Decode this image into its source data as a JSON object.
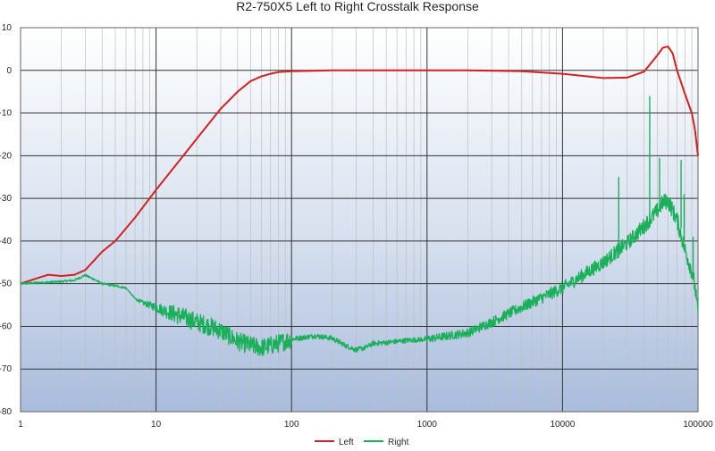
{
  "chart_data": {
    "type": "line",
    "title": "R2-750X5 Left to Right Crosstalk Response",
    "xlabel": "",
    "ylabel": "",
    "xscale": "log",
    "xlim": [
      1,
      100000
    ],
    "ylim": [
      -80,
      10
    ],
    "x_tick_labels": [
      "1",
      "10",
      "100",
      "1000",
      "10000",
      "100000"
    ],
    "y_tick_labels": [
      "10",
      "0",
      "-10",
      "-20",
      "-30",
      "-40",
      "-50",
      "-60",
      "-70",
      "-80"
    ],
    "grid": true,
    "background": "vertical gradient, white at top to light blue at bottom",
    "legend_position": "bottom-center",
    "series": [
      {
        "name": "Left",
        "color": "#d42020",
        "x": [
          1,
          1.3,
          1.6,
          2,
          2.5,
          3,
          3.5,
          4,
          5,
          7,
          10,
          15,
          20,
          30,
          40,
          50,
          60,
          70,
          80,
          100,
          150,
          200,
          500,
          1000,
          2000,
          5000,
          10000,
          20000,
          30000,
          40000,
          50000,
          55000,
          60000,
          65000,
          70000,
          80000,
          90000,
          95000,
          100000
        ],
        "y": [
          -50,
          -48.8,
          -47.9,
          -48.2,
          -47.9,
          -46.8,
          -44.5,
          -42.5,
          -40,
          -34.5,
          -28,
          -21,
          -16,
          -9,
          -5,
          -2.5,
          -1.4,
          -0.8,
          -0.4,
          -0.2,
          -0.1,
          0,
          0,
          0,
          0,
          -0.2,
          -0.8,
          -1.8,
          -1.7,
          -0.3,
          3.5,
          5.3,
          5.6,
          4,
          0,
          -5.5,
          -10,
          -14,
          -20
        ]
      },
      {
        "name": "Right",
        "color": "#1ab05a",
        "x": [
          1,
          1.5,
          2,
          2.5,
          3,
          3.5,
          4,
          5,
          6,
          7,
          8,
          10,
          12,
          15,
          20,
          25,
          30,
          40,
          50,
          60,
          70,
          80,
          100,
          150,
          200,
          250,
          300,
          350,
          400,
          500,
          700,
          1000,
          2000,
          3000,
          5000,
          10000,
          20000,
          30000,
          40000,
          50000,
          55000,
          60000,
          70000,
          80000,
          90000,
          95000,
          100000
        ],
        "y": [
          -50,
          -49.7,
          -49.5,
          -49.2,
          -48,
          -49,
          -50,
          -50.5,
          -51,
          -53.5,
          -54.5,
          -55.5,
          -56.5,
          -57.5,
          -59,
          -60,
          -61,
          -63.5,
          -64.5,
          -65,
          -64.5,
          -64,
          -63,
          -62.2,
          -62.8,
          -64.5,
          -65.5,
          -65,
          -64,
          -63.8,
          -63.3,
          -63,
          -61.5,
          -59,
          -55.5,
          -51,
          -45,
          -40.5,
          -36.5,
          -33,
          -31,
          -30.5,
          -35,
          -42,
          -47,
          -51,
          -57
        ]
      }
    ],
    "annotations": [
      {
        "series": "Right",
        "type": "spike",
        "x": 26000,
        "y_from": -44,
        "y_to": -25
      },
      {
        "series": "Right",
        "type": "spike",
        "x": 44000,
        "y_from": -36,
        "y_to": -6
      },
      {
        "series": "Right",
        "type": "spike",
        "x": 52000,
        "y_from": -33,
        "y_to": -20.5
      },
      {
        "series": "Right",
        "type": "spike",
        "x": 75000,
        "y_from": -37,
        "y_to": -21
      },
      {
        "series": "Right",
        "type": "spike",
        "x": 79000,
        "y_from": -40,
        "y_to": -29
      },
      {
        "series": "Right",
        "type": "spike",
        "x": 92000,
        "y_from": -48,
        "y_to": -39
      }
    ]
  }
}
